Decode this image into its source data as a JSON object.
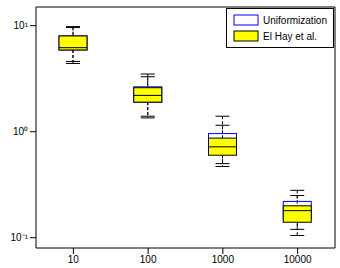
{
  "chart_data": {
    "type": "box",
    "categories": [
      "10",
      "100",
      "1000",
      "10000"
    ],
    "log": "y",
    "ylim": [
      0.08,
      15
    ],
    "yticks": [
      {
        "value": 0.1,
        "label": "10⁻¹"
      },
      {
        "value": 1,
        "label": "10⁰"
      },
      {
        "value": 10,
        "label": "10¹"
      }
    ],
    "legend": "upper right",
    "grid": false,
    "series": [
      {
        "name": "Uniformization",
        "color": "#0000ff",
        "values": [
          {
            "min": 4.6,
            "q1": 5.9,
            "median": 6.1,
            "q3": 8.0,
            "max": 9.8
          },
          {
            "min": 1.4,
            "q1": 1.9,
            "median": 2.3,
            "q3": 2.65,
            "max": 3.5
          },
          {
            "min": 0.5,
            "q1": 0.62,
            "median": 0.74,
            "q3": 0.96,
            "max": 1.4
          },
          {
            "min": 0.12,
            "q1": 0.15,
            "median": 0.185,
            "q3": 0.22,
            "max": 0.28
          }
        ]
      },
      {
        "name": "El Hay et al.",
        "color": "#ffff00",
        "values": [
          {
            "min": 4.4,
            "q1": 5.9,
            "median": 6.2,
            "q3": 8.0,
            "max": 9.6
          },
          {
            "min": 1.35,
            "q1": 1.9,
            "median": 2.2,
            "q3": 2.6,
            "max": 3.3
          },
          {
            "min": 0.47,
            "q1": 0.6,
            "median": 0.72,
            "q3": 0.87,
            "max": 1.15
          },
          {
            "min": 0.105,
            "q1": 0.14,
            "median": 0.18,
            "q3": 0.2,
            "max": 0.25
          }
        ]
      }
    ]
  }
}
